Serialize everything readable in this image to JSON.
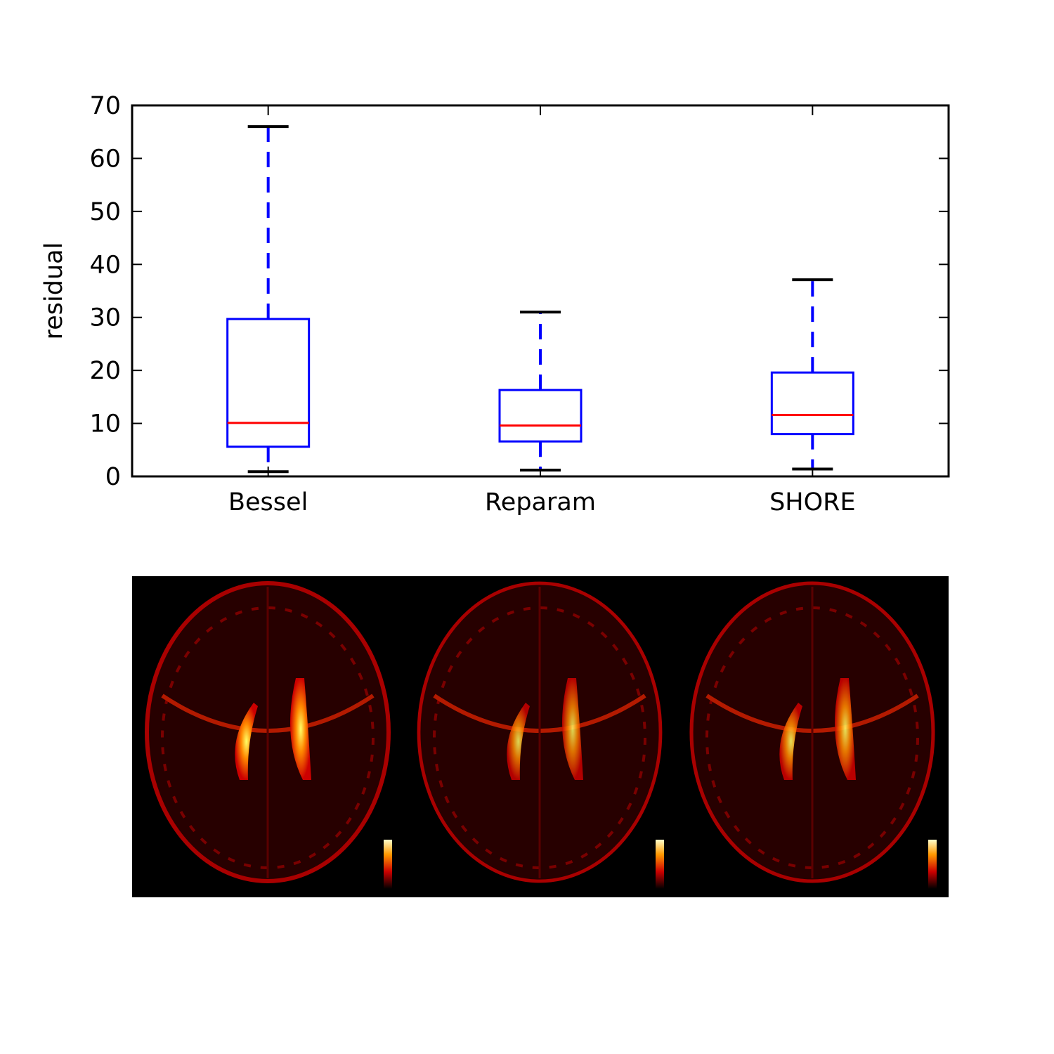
{
  "chart_data": {
    "type": "box",
    "ylabel": "residual",
    "xlabel": "",
    "ylim": [
      0,
      70
    ],
    "yticks": [
      "0",
      "10",
      "20",
      "30",
      "40",
      "50",
      "60",
      "70"
    ],
    "categories": [
      "Bessel",
      "Reparam",
      "SHORE"
    ],
    "boxes": [
      {
        "label": "Bessel",
        "whisker_low": 0.9,
        "q1": 5.6,
        "median": 10.1,
        "q3": 29.7,
        "whisker_high": 66.0
      },
      {
        "label": "Reparam",
        "whisker_low": 1.2,
        "q1": 6.6,
        "median": 9.6,
        "q3": 16.3,
        "whisker_high": 31.0
      },
      {
        "label": "SHORE",
        "whisker_low": 1.4,
        "q1": 8.0,
        "median": 11.6,
        "q3": 19.6,
        "whisker_high": 37.1
      }
    ],
    "grid": false,
    "colors": {
      "box": "#0000ff",
      "median": "#ff0000",
      "cap": "#000000"
    }
  },
  "brain_panel": {
    "colormap": "hot",
    "background": "#000000",
    "panels": [
      "Bessel",
      "Reparam",
      "SHORE"
    ]
  }
}
